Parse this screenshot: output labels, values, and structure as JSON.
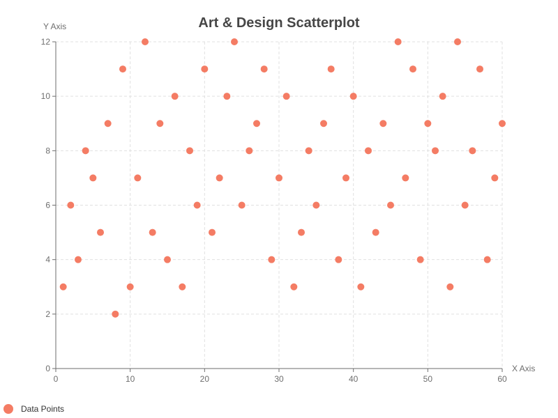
{
  "chart_data": {
    "type": "scatter",
    "title": "Art & Design Scatterplot",
    "xlabel": "X Axis",
    "ylabel": "Y Axis",
    "xlim": [
      0,
      60
    ],
    "ylim": [
      0,
      12
    ],
    "x_ticks": [
      0,
      10,
      20,
      30,
      40,
      50,
      60
    ],
    "y_ticks": [
      0,
      2,
      4,
      6,
      8,
      10,
      12
    ],
    "grid": true,
    "legend_position": "bottom-left",
    "colors": {
      "point": "#f47c64",
      "grid": "#e0e0e0",
      "axis": "#6e6e6e",
      "title": "#464646"
    },
    "series": [
      {
        "name": "Data Points",
        "points": [
          [
            1,
            3
          ],
          [
            2,
            6
          ],
          [
            3,
            4
          ],
          [
            4,
            8
          ],
          [
            5,
            7
          ],
          [
            6,
            5
          ],
          [
            7,
            9
          ],
          [
            8,
            2
          ],
          [
            9,
            11
          ],
          [
            10,
            3
          ],
          [
            11,
            7
          ],
          [
            12,
            12
          ],
          [
            13,
            5
          ],
          [
            14,
            9
          ],
          [
            15,
            4
          ],
          [
            16,
            10
          ],
          [
            17,
            3
          ],
          [
            18,
            8
          ],
          [
            19,
            6
          ],
          [
            20,
            11
          ],
          [
            21,
            5
          ],
          [
            22,
            7
          ],
          [
            23,
            10
          ],
          [
            24,
            12
          ],
          [
            25,
            6
          ],
          [
            26,
            8
          ],
          [
            27,
            9
          ],
          [
            28,
            11
          ],
          [
            29,
            4
          ],
          [
            30,
            7
          ],
          [
            31,
            10
          ],
          [
            32,
            3
          ],
          [
            33,
            5
          ],
          [
            34,
            8
          ],
          [
            35,
            6
          ],
          [
            36,
            9
          ],
          [
            37,
            11
          ],
          [
            38,
            4
          ],
          [
            39,
            7
          ],
          [
            40,
            10
          ],
          [
            41,
            3
          ],
          [
            42,
            8
          ],
          [
            43,
            5
          ],
          [
            44,
            9
          ],
          [
            45,
            6
          ],
          [
            46,
            12
          ],
          [
            47,
            7
          ],
          [
            48,
            11
          ],
          [
            49,
            4
          ],
          [
            50,
            9
          ],
          [
            51,
            8
          ],
          [
            52,
            10
          ],
          [
            53,
            3
          ],
          [
            54,
            12
          ],
          [
            55,
            6
          ],
          [
            56,
            8
          ],
          [
            57,
            11
          ],
          [
            58,
            4
          ],
          [
            59,
            7
          ],
          [
            60,
            9
          ]
        ]
      }
    ]
  }
}
